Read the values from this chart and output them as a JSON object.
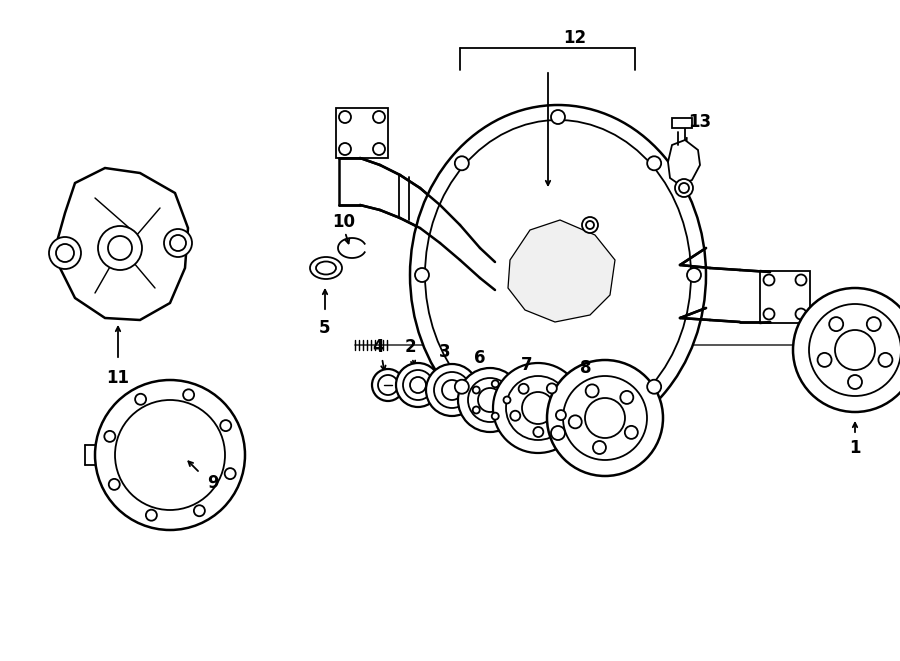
{
  "background": "#ffffff",
  "line_color": "#000000",
  "lw": 1.3,
  "figsize": [
    9.0,
    6.61
  ],
  "dpi": 100,
  "xlim": [
    0,
    900
  ],
  "ylim": [
    0,
    661
  ]
}
